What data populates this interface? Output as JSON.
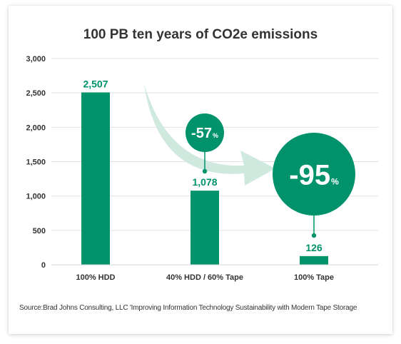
{
  "chart_data": {
    "type": "bar",
    "title": "100 PB ten years of CO2e emissions",
    "categories": [
      "100% HDD",
      "40% HDD / 60% Tape",
      "100% Tape"
    ],
    "values": [
      2507,
      1078,
      126
    ],
    "value_labels": [
      "2,507",
      "1,078",
      "126"
    ],
    "ylim": [
      0,
      3000
    ],
    "yticks": [
      0,
      500,
      1000,
      1500,
      2000,
      2500,
      3000
    ],
    "ytick_labels": [
      "0",
      "500",
      "1,000",
      "1,500",
      "2,000",
      "2,500",
      "3,000"
    ],
    "grid": true,
    "xlabel": "",
    "ylabel": "",
    "annotations": [
      {
        "value": "-57",
        "unit": "%",
        "category": "40% HDD / 60% Tape"
      },
      {
        "value": "-95",
        "unit": "%",
        "category": "100% Tape"
      }
    ]
  },
  "colors": {
    "bar": "#00936b",
    "value_label": "#00936b",
    "badge": "#00936b",
    "arrow": "#cfe9df",
    "grid": "#e2e2e2",
    "text": "#333333"
  },
  "source": "Source:Brad Johns Consulting, LLC 'Improving Information Technology Sustainability with Modern Tape Storage"
}
